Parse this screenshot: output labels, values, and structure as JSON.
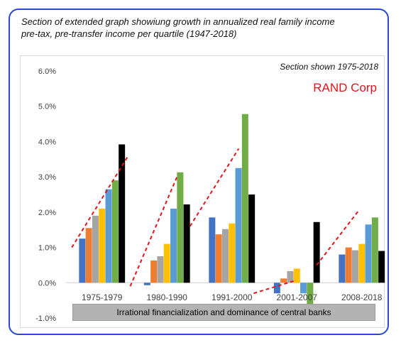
{
  "title_line1": "Section of extended graph showiung growth in annualized real family income",
  "title_line2": "pre-tax, pre-transfer income per quartile (1947-2018)",
  "annotations": {
    "section": "Section shown 1975-2018",
    "source": "RAND Corp",
    "banner": "Irrational financialization and dominance of central banks"
  },
  "colors": {
    "frame": "#2b47d6",
    "trend": "#e3141b",
    "banner": "#b3b3b3"
  },
  "chart_data": {
    "type": "bar",
    "categories": [
      "1975-1979",
      "1980-1990",
      "1991-2000",
      "2001-2007",
      "2008-2018"
    ],
    "series": [
      {
        "color": "#4472c4",
        "values": [
          1.25,
          -0.07,
          1.85,
          -0.3,
          0.8
        ]
      },
      {
        "color": "#ed7d31",
        "values": [
          1.55,
          0.63,
          1.37,
          0.12,
          1.0
        ]
      },
      {
        "color": "#a5a5a5",
        "values": [
          1.9,
          0.75,
          1.52,
          0.33,
          0.92
        ]
      },
      {
        "color": "#ffc000",
        "values": [
          2.1,
          1.1,
          1.68,
          0.4,
          1.1
        ]
      },
      {
        "color": "#5b9bd5",
        "values": [
          2.65,
          2.1,
          3.25,
          -0.3,
          1.65
        ]
      },
      {
        "color": "#70ad47",
        "values": [
          2.9,
          3.13,
          4.78,
          -0.6,
          1.85
        ]
      },
      {
        "color": "#000000",
        "values": [
          3.92,
          2.22,
          2.5,
          1.72,
          0.9
        ]
      }
    ],
    "y_ticks": [
      "6.0%",
      "5.0%",
      "4.0%",
      "3.0%",
      "2.0%",
      "1.0%",
      "0.0%",
      "-1.0%"
    ],
    "ylim": [
      -1,
      6
    ],
    "grid": false,
    "trendlines": [
      {
        "x1": 0.98,
        "y1": 1.0,
        "x2": 1.85,
        "y2": 3.6
      },
      {
        "x1": 1.88,
        "y1": -0.1,
        "x2": 2.6,
        "y2": 3.0
      },
      {
        "x1": 2.8,
        "y1": 1.6,
        "x2": 3.55,
        "y2": 3.8
      },
      {
        "x1": 3.78,
        "y1": -0.3,
        "x2": 4.4,
        "y2": 0.05
      },
      {
        "x1": 4.75,
        "y1": 0.5,
        "x2": 5.4,
        "y2": 2.05
      }
    ]
  }
}
